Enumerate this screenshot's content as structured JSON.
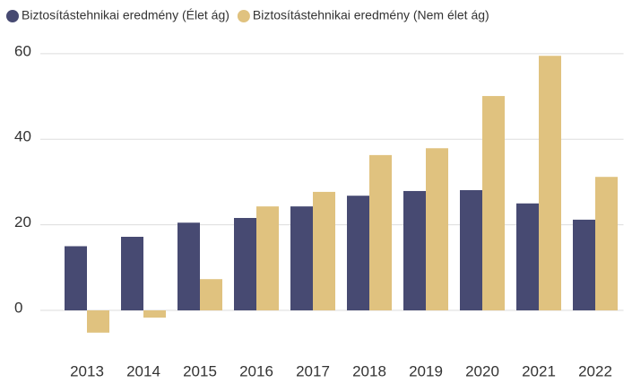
{
  "chart_data": {
    "type": "bar",
    "categories": [
      "2013",
      "2014",
      "2015",
      "2016",
      "2017",
      "2018",
      "2019",
      "2020",
      "2021",
      "2022"
    ],
    "series": [
      {
        "name": "Biztosítástehnikai eredmény (Élet ág)",
        "color": "#474a72",
        "values": [
          15,
          17.2,
          20.5,
          21.6,
          24.3,
          26.8,
          27.9,
          28.1,
          25,
          21.2
        ]
      },
      {
        "name": "Biztosítástehnikai eredmény (Nem élet ág)",
        "color": "#e0c27f",
        "values": [
          -5.2,
          -1.7,
          7.3,
          24.3,
          27.7,
          36.3,
          37.9,
          50.1,
          59.5,
          31.2
        ]
      }
    ],
    "ylim": [
      -8,
      62
    ],
    "yticks": [
      0,
      20,
      40,
      60
    ],
    "grid": true,
    "legend": "top"
  }
}
